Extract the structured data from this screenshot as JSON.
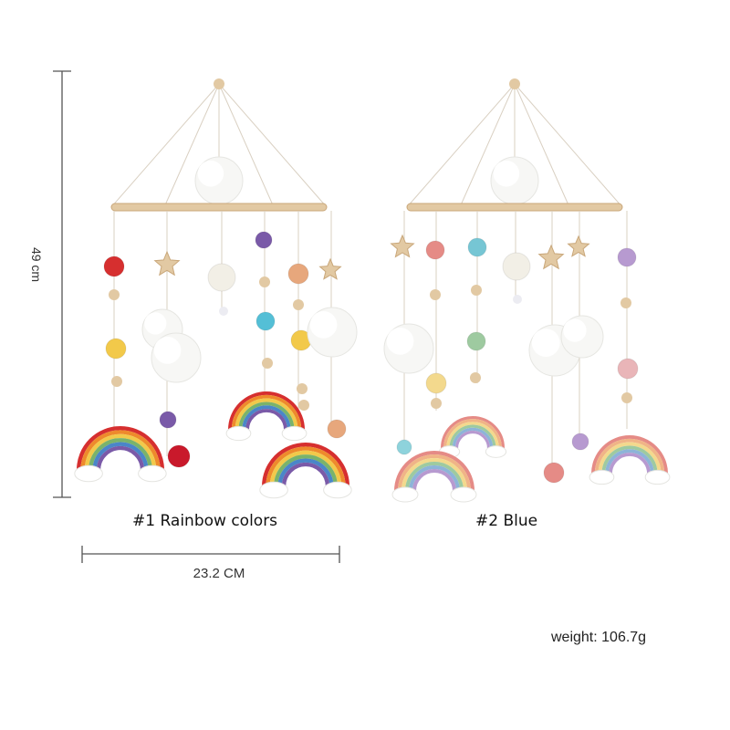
{
  "products": [
    {
      "label": "#1 Rainbow colors",
      "variant": "rainbow"
    },
    {
      "label": "#2 Blue",
      "variant": "blue"
    }
  ],
  "dimensions": {
    "height_label": "49 cm",
    "width_label": "23.2 CM"
  },
  "weight_label": "weight: 106.7g",
  "colors": {
    "wood": "#e2c9a3",
    "string": "#d9d0c2",
    "pompom": "#f7f7f5",
    "rainbow_set": [
      "#d62f2f",
      "#ee8a2c",
      "#f2c94a",
      "#7ab36b",
      "#4a86c8",
      "#7a5aa8"
    ],
    "pastel_set": [
      "#e58b86",
      "#f0b487",
      "#f3d98d",
      "#9ecaa0",
      "#8db4d8",
      "#b79ad0"
    ],
    "dimension_line": "#555555"
  },
  "icons": [
    "wood-star-icon",
    "crochet-bead-icon",
    "pompom-icon",
    "macrame-rainbow-icon",
    "wooden-hoop-icon"
  ]
}
